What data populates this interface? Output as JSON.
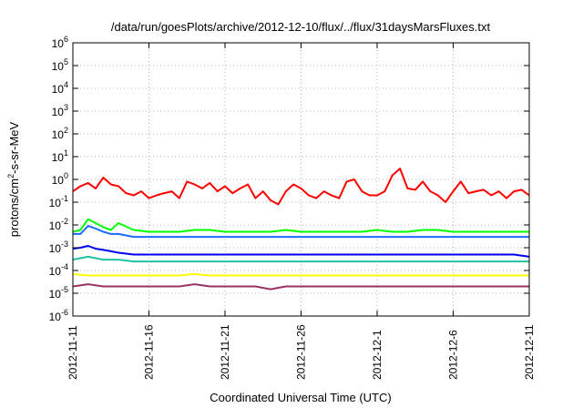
{
  "chart_data": {
    "type": "line",
    "title": "/data/run/goesPlots/archive/2012-12-10/flux/../flux/31daysMarsFluxes.txt",
    "xlabel": "Coordinated Universal Time (UTC)",
    "ylabel": {
      "main": "protons/cm",
      "sup": "2",
      "rest": "-s-sr-MeV"
    },
    "yscale": "log",
    "ylim": [
      1e-06,
      1000000.0
    ],
    "grid": true,
    "x_tick_labels": [
      "2012-11-11",
      "2012-11-16",
      "2012-11-21",
      "2012-11-26",
      "2012-12-1",
      "2012-12-6",
      "2012-12-11"
    ],
    "y_ticks": [
      {
        "base": "10",
        "exp": "-6"
      },
      {
        "base": "10",
        "exp": "-5"
      },
      {
        "base": "10",
        "exp": "-4"
      },
      {
        "base": "10",
        "exp": "-3"
      },
      {
        "base": "10",
        "exp": "-2"
      },
      {
        "base": "10",
        "exp": "-1"
      },
      {
        "base": "10",
        "exp": "0"
      },
      {
        "base": "10",
        "exp": "1"
      },
      {
        "base": "10",
        "exp": "2"
      },
      {
        "base": "10",
        "exp": "3"
      },
      {
        "base": "10",
        "exp": "4"
      },
      {
        "base": "10",
        "exp": "5"
      },
      {
        "base": "10",
        "exp": "6"
      }
    ],
    "series": [
      {
        "color": "#ff0000",
        "x_days": [
          0,
          0.5,
          1,
          1.5,
          2,
          2.5,
          3,
          3.5,
          4,
          4.5,
          5,
          5.5,
          6,
          6.5,
          7,
          7.5,
          8,
          8.5,
          9,
          9.5,
          10,
          10.5,
          11,
          11.5,
          12,
          12.5,
          13,
          13.5,
          14,
          14.5,
          15,
          15.5,
          16,
          16.5,
          17,
          17.5,
          18,
          18.5,
          19,
          19.5,
          20,
          20.5,
          21,
          21.5,
          22,
          22.5,
          23,
          23.5,
          24,
          24.5,
          25,
          25.5,
          26,
          26.5,
          27,
          27.5,
          28,
          28.5,
          29,
          29.5,
          30
        ],
        "values": [
          0.3,
          0.5,
          0.7,
          0.4,
          1.2,
          0.6,
          0.5,
          0.25,
          0.2,
          0.3,
          0.15,
          0.2,
          0.25,
          0.3,
          0.15,
          0.8,
          0.6,
          0.4,
          0.7,
          0.3,
          0.5,
          0.25,
          0.4,
          0.6,
          0.15,
          0.3,
          0.12,
          0.08,
          0.3,
          0.6,
          0.4,
          0.2,
          0.15,
          0.3,
          0.2,
          0.15,
          0.8,
          1.0,
          0.3,
          0.2,
          0.2,
          0.3,
          1.5,
          3.0,
          0.4,
          0.35,
          0.8,
          0.3,
          0.2,
          0.1,
          0.3,
          0.8,
          0.25,
          0.3,
          0.35,
          0.2,
          0.3,
          0.15,
          0.3,
          0.35,
          0.2
        ]
      },
      {
        "color": "#00ff00",
        "x_days": [
          0,
          0.5,
          1,
          1.5,
          2,
          2.5,
          3,
          4,
          5,
          6,
          7,
          8,
          9,
          10,
          11,
          12,
          13,
          14,
          15,
          16,
          17,
          18,
          19,
          20,
          21,
          22,
          23,
          24,
          25,
          26,
          27,
          28,
          29,
          30
        ],
        "values": [
          0.005,
          0.006,
          0.018,
          0.012,
          0.008,
          0.006,
          0.012,
          0.006,
          0.005,
          0.005,
          0.005,
          0.006,
          0.006,
          0.005,
          0.005,
          0.005,
          0.005,
          0.006,
          0.005,
          0.005,
          0.005,
          0.005,
          0.005,
          0.006,
          0.005,
          0.005,
          0.006,
          0.006,
          0.005,
          0.005,
          0.005,
          0.005,
          0.005,
          0.005
        ]
      },
      {
        "color": "#1a6cff",
        "x_days": [
          0,
          0.5,
          1,
          1.5,
          2,
          2.5,
          3,
          4,
          5,
          6,
          7,
          8,
          9,
          10,
          11,
          12,
          13,
          14,
          15,
          16,
          17,
          18,
          19,
          20,
          21,
          22,
          23,
          24,
          25,
          26,
          27,
          28,
          29,
          30
        ],
        "values": [
          0.004,
          0.004,
          0.009,
          0.007,
          0.005,
          0.004,
          0.004,
          0.003,
          0.003,
          0.003,
          0.003,
          0.003,
          0.003,
          0.003,
          0.003,
          0.003,
          0.003,
          0.003,
          0.003,
          0.003,
          0.003,
          0.003,
          0.003,
          0.003,
          0.003,
          0.003,
          0.003,
          0.003,
          0.003,
          0.003,
          0.003,
          0.003,
          0.003,
          0.003
        ]
      },
      {
        "color": "#0000ee",
        "x_days": [
          0,
          0.5,
          1,
          1.5,
          2,
          2.5,
          3,
          4,
          5,
          6,
          7,
          8,
          9,
          10,
          11,
          12,
          13,
          14,
          15,
          16,
          17,
          18,
          19,
          20,
          21,
          22,
          23,
          24,
          25,
          26,
          27,
          28,
          29,
          30
        ],
        "values": [
          0.0009,
          0.001,
          0.0012,
          0.0009,
          0.0008,
          0.0007,
          0.0006,
          0.0005,
          0.0005,
          0.0005,
          0.0005,
          0.0005,
          0.0005,
          0.0005,
          0.0005,
          0.0005,
          0.0005,
          0.0005,
          0.0005,
          0.0005,
          0.0005,
          0.0005,
          0.0005,
          0.0005,
          0.0005,
          0.0005,
          0.0005,
          0.0005,
          0.0005,
          0.0005,
          0.0005,
          0.0005,
          0.0005,
          0.0004
        ]
      },
      {
        "color": "#20c0a0",
        "x_days": [
          0,
          1,
          2,
          3,
          4,
          5,
          6,
          7,
          8,
          9,
          10,
          11,
          12,
          13,
          14,
          15,
          16,
          17,
          18,
          19,
          20,
          21,
          22,
          23,
          24,
          25,
          26,
          27,
          28,
          29,
          30
        ],
        "values": [
          0.0003,
          0.0004,
          0.0003,
          0.0003,
          0.00025,
          0.00025,
          0.00025,
          0.00025,
          0.00025,
          0.00025,
          0.00025,
          0.00025,
          0.00025,
          0.00025,
          0.00025,
          0.00025,
          0.00025,
          0.00025,
          0.00025,
          0.00025,
          0.00025,
          0.00025,
          0.00025,
          0.00025,
          0.00025,
          0.00025,
          0.00025,
          0.00025,
          0.00025,
          0.00025,
          0.00025
        ]
      },
      {
        "color": "#ffff00",
        "x_days": [
          0,
          1,
          2,
          3,
          4,
          5,
          6,
          7,
          8,
          9,
          10,
          11,
          12,
          13,
          14,
          15,
          16,
          17,
          18,
          19,
          20,
          21,
          22,
          23,
          24,
          25,
          26,
          27,
          28,
          29,
          30
        ],
        "values": [
          7e-05,
          6e-05,
          6e-05,
          6e-05,
          6e-05,
          6e-05,
          6e-05,
          6e-05,
          7e-05,
          6e-05,
          6e-05,
          6e-05,
          6e-05,
          6e-05,
          6e-05,
          6e-05,
          6e-05,
          6e-05,
          6e-05,
          6e-05,
          6e-05,
          6e-05,
          6e-05,
          6e-05,
          6e-05,
          6e-05,
          6e-05,
          6e-05,
          6e-05,
          6e-05,
          6e-05
        ]
      },
      {
        "color": "#993366",
        "x_days": [
          0,
          1,
          2,
          3,
          4,
          5,
          6,
          7,
          8,
          9,
          10,
          11,
          12,
          13,
          14,
          15,
          16,
          17,
          18,
          19,
          20,
          21,
          22,
          23,
          24,
          25,
          26,
          27,
          28,
          29,
          30
        ],
        "values": [
          2e-05,
          2.5e-05,
          2e-05,
          2e-05,
          2e-05,
          2e-05,
          2e-05,
          2e-05,
          2.5e-05,
          2e-05,
          2e-05,
          2e-05,
          2e-05,
          1.5e-05,
          2e-05,
          2e-05,
          2e-05,
          2e-05,
          2e-05,
          2e-05,
          2e-05,
          2e-05,
          2e-05,
          2e-05,
          2e-05,
          2e-05,
          2e-05,
          2e-05,
          2e-05,
          2e-05,
          2e-05
        ]
      }
    ]
  }
}
